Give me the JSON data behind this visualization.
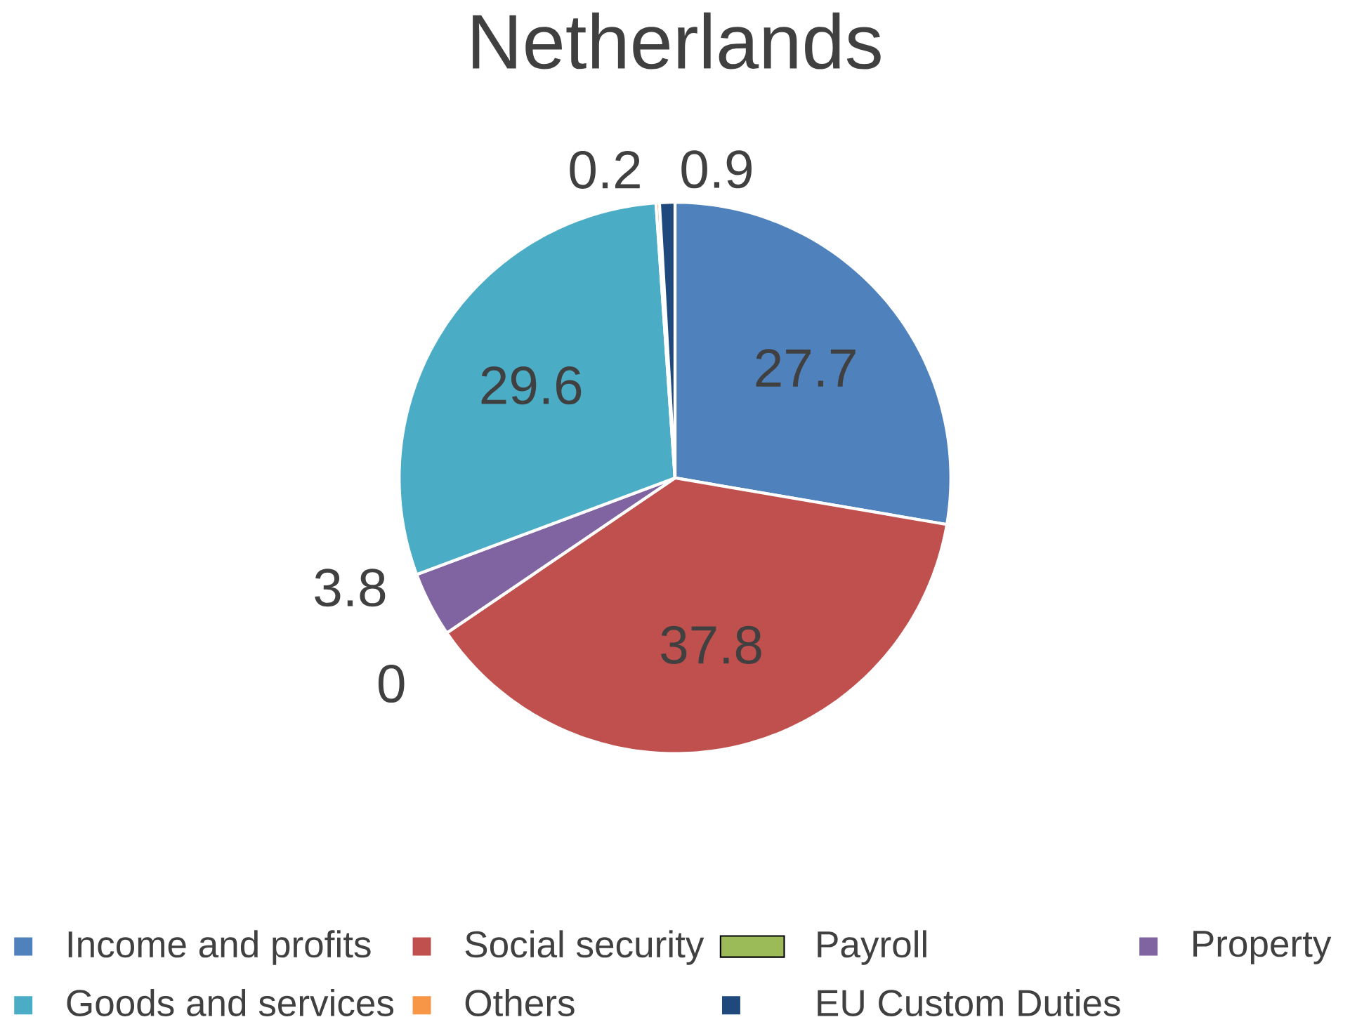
{
  "chart_data": {
    "type": "pie",
    "title": "Netherlands",
    "categories": [
      "Income and profits",
      "Social security",
      "Payroll",
      "Property",
      "Goods and services",
      "Others",
      "EU Custom Duties"
    ],
    "values": [
      27.7,
      37.8,
      0,
      3.8,
      29.6,
      0.2,
      0.9
    ],
    "colors": [
      "#4f81bd",
      "#c0504d",
      "#9bbb59",
      "#8064a2",
      "#4bacc6",
      "#f79646",
      "#1f497d"
    ],
    "value_labels": [
      "27.7",
      "37.8",
      "0",
      "3.8",
      "29.6",
      "0.2",
      "0.9"
    ],
    "legend": "bottom"
  }
}
